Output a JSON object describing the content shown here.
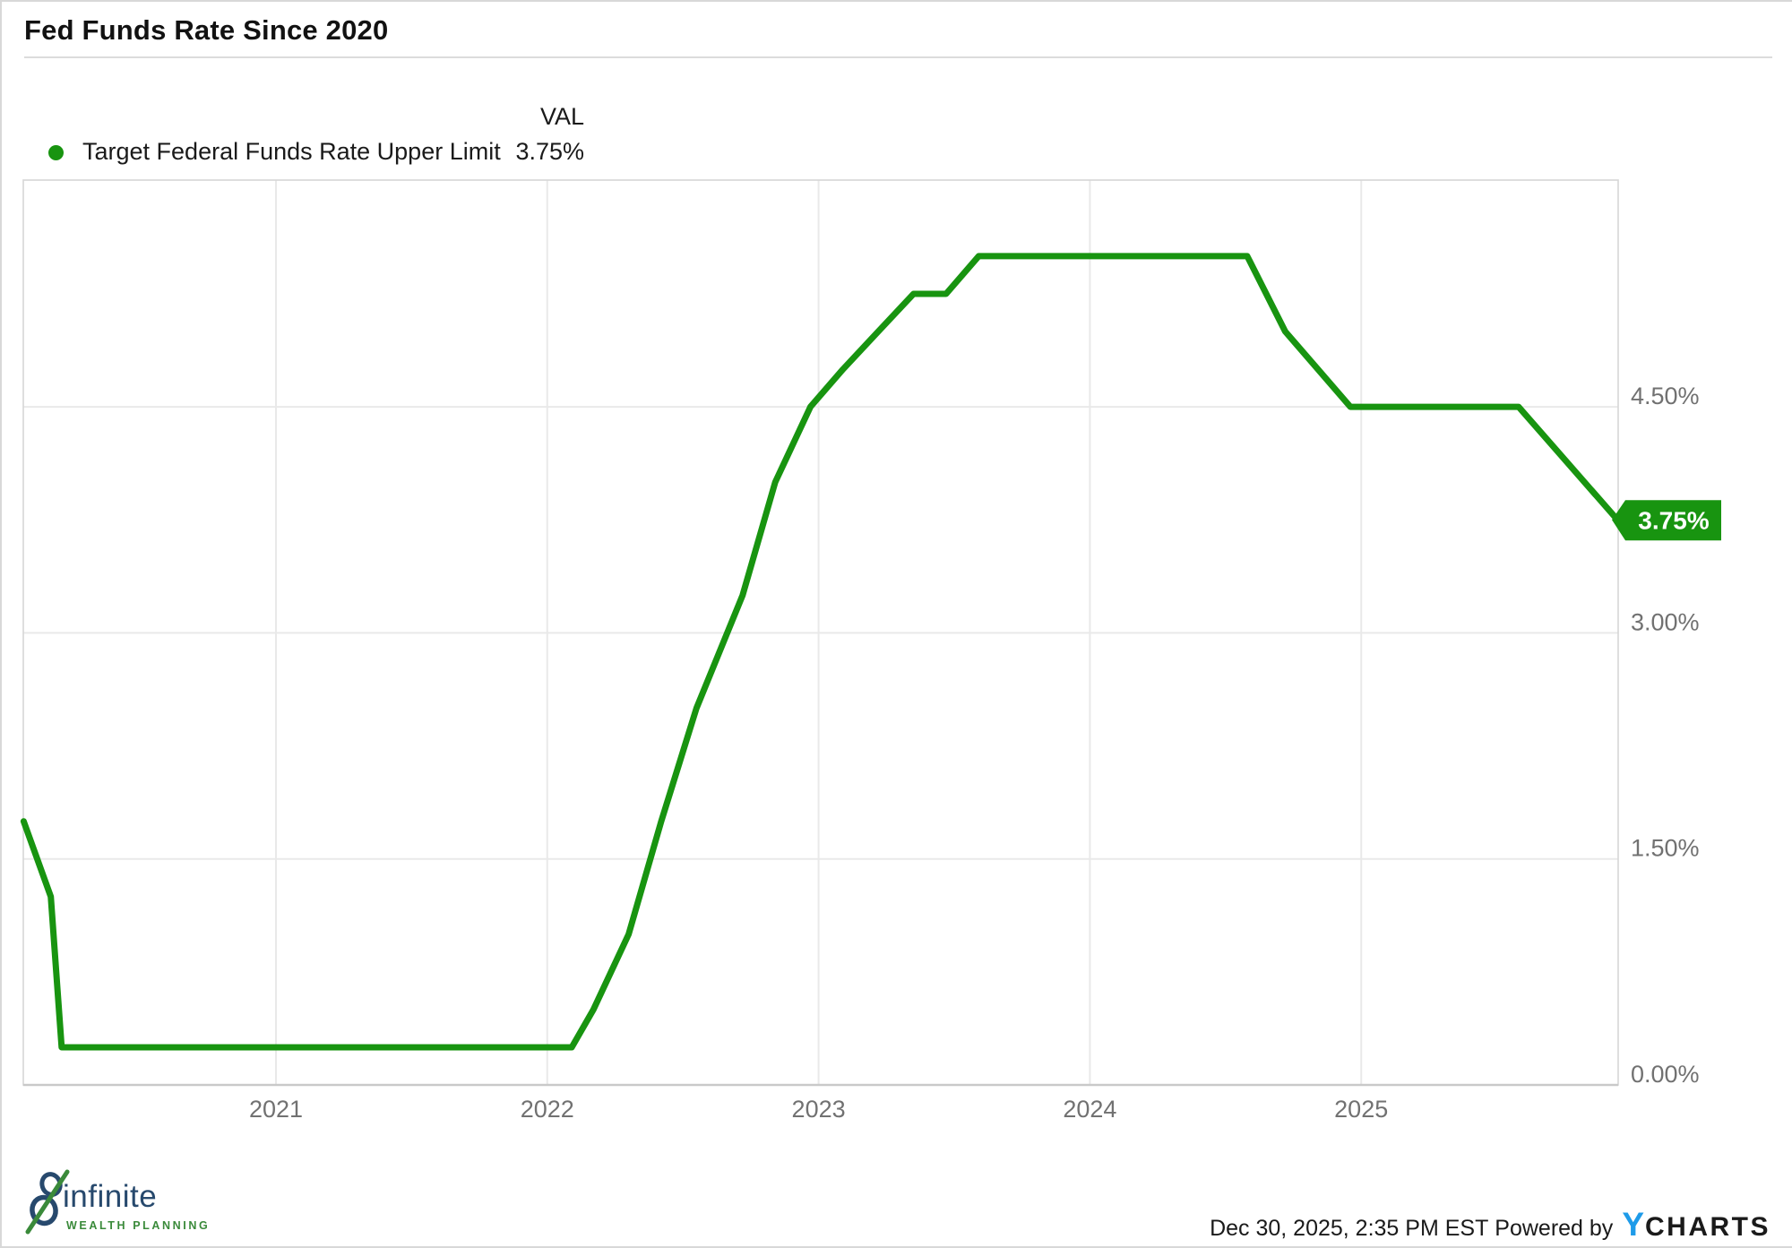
{
  "header": {
    "title": "Fed Funds Rate Since 2020"
  },
  "legend": {
    "series_label": "Target Federal Funds Rate Upper Limit",
    "val_header": "VAL",
    "val_value": "3.75%"
  },
  "colors": {
    "line": "#189410",
    "badge": "#189410",
    "badge_text": "#ffffff",
    "axis_text": "#717171",
    "grid": "#e9e9e9",
    "plot_border": "#d6d6d6",
    "axis_line": "#c9c9c9",
    "ycharts_blue": "#1e9be9",
    "logo_navy": "#27496d",
    "logo_green": "#3a8a3a"
  },
  "chart_data": {
    "type": "line",
    "title": "Fed Funds Rate Since 2020",
    "xlabel": "",
    "ylabel": "Target Federal Funds Rate Upper Limit (%)",
    "grid": true,
    "legend_position": "top-left",
    "ylim": [
      0,
      6.0
    ],
    "xlim_years": [
      2020.07,
      2025.95
    ],
    "x_ticks": [
      {
        "t": 2021,
        "label": "2021"
      },
      {
        "t": 2022,
        "label": "2022"
      },
      {
        "t": 2023,
        "label": "2023"
      },
      {
        "t": 2024,
        "label": "2024"
      },
      {
        "t": 2025,
        "label": "2025"
      }
    ],
    "y_ticks": [
      {
        "value": 4.5,
        "label": "4.50%"
      },
      {
        "value": 3.0,
        "label": "3.00%"
      },
      {
        "value": 1.5,
        "label": "1.50%"
      },
      {
        "value": 0.0,
        "label": "0.00%"
      }
    ],
    "series": [
      {
        "name": "Target Federal Funds Rate Upper Limit",
        "unit": "%",
        "points": [
          [
            2020.07,
            1.75
          ],
          [
            2020.17,
            1.25
          ],
          [
            2020.21,
            0.25
          ],
          [
            2022.09,
            0.25
          ],
          [
            2022.17,
            0.5
          ],
          [
            2022.3,
            1.0
          ],
          [
            2022.42,
            1.75
          ],
          [
            2022.55,
            2.5
          ],
          [
            2022.72,
            3.25
          ],
          [
            2022.84,
            4.0
          ],
          [
            2022.97,
            4.5
          ],
          [
            2023.09,
            4.75
          ],
          [
            2023.22,
            5.0
          ],
          [
            2023.35,
            5.25
          ],
          [
            2023.47,
            5.25
          ],
          [
            2023.59,
            5.5
          ],
          [
            2024.58,
            5.5
          ],
          [
            2024.72,
            5.0
          ],
          [
            2024.84,
            4.75
          ],
          [
            2024.96,
            4.5
          ],
          [
            2025.58,
            4.5
          ],
          [
            2025.945,
            3.75
          ]
        ]
      }
    ],
    "last_value_label": "3.75%"
  },
  "footer": {
    "brand_name": "infinite",
    "brand_subtitle": "WEALTH PLANNING",
    "timestamp": "Dec 30, 2025, 2:35 PM EST",
    "powered_by": " Powered by",
    "ycharts_y": "Y",
    "ycharts_charts": "CHARTS"
  }
}
